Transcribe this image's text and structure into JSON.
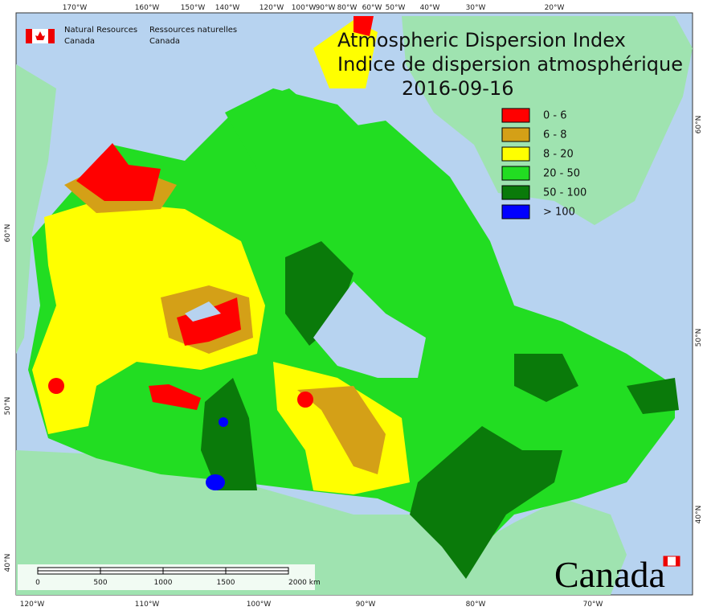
{
  "agency": {
    "en": [
      "Natural Resources",
      "Canada"
    ],
    "fr": [
      "Ressources naturelles",
      "Canada"
    ]
  },
  "title": [
    "Atmospheric Dispersion Index",
    "Indice de dispersion atmosphérique"
  ],
  "date": "2016-09-16",
  "legend": [
    {
      "label": "0 - 6",
      "color": "#ff0000"
    },
    {
      "label": "6 - 8",
      "color": "#d4a017"
    },
    {
      "label": "8 - 20",
      "color": "#ffff00"
    },
    {
      "label": "20 - 50",
      "color": "#22dd22"
    },
    {
      "label": "50 - 100",
      "color": "#0a7a0a"
    },
    {
      "label": "> 100",
      "color": "#0000ff"
    }
  ],
  "graticule": {
    "top": [
      "170°W",
      "160°W",
      "150°W",
      "140°W",
      "120°W",
      "100°W",
      "90°W",
      "80°W",
      "60°W",
      "50°W",
      "40°W",
      "30°W",
      "20°W"
    ],
    "bottom": [
      "120°W",
      "110°W",
      "100°W",
      "90°W",
      "80°W",
      "70°W"
    ],
    "left": [
      "60°N",
      "50°N",
      "40°N"
    ],
    "right": [
      "60°N",
      "50°N",
      "40°N"
    ]
  },
  "scale_bar": [
    "0",
    "500",
    "1000",
    "1500",
    "2000 km"
  ],
  "wordmark": "Canada"
}
